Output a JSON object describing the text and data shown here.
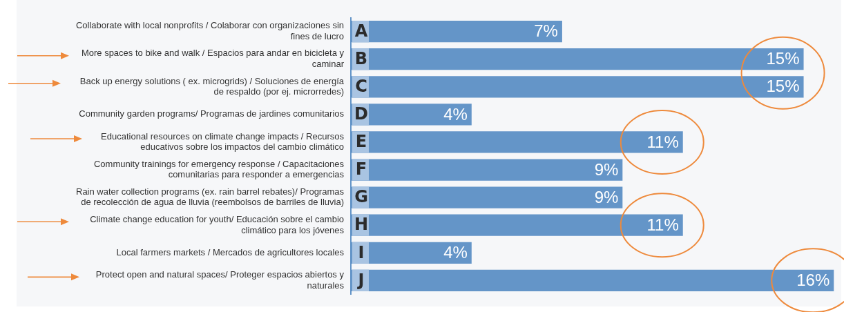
{
  "chart_data": {
    "type": "bar",
    "orientation": "horizontal",
    "categories": [
      "Collaborate with local nonprofits / Colaborar con organizaciones sin fines de lucro",
      "More spaces to bike and walk / Espacios para andar en bicicleta y caminar",
      "Back up energy solutions ( ex. microgrids) / Soluciones de energía de respaldo (por ej. microrredes)",
      "Community garden programs/ Programas de jardines comunitarios",
      "Educational resources on climate change impacts / Recursos educativos sobre los impactos del cambio climático",
      "Community trainings for emergency response / Capacitaciones comunitarias para responder a emergencias",
      "Rain water collection programs (ex. rain barrel rebates)/ Programas de recolección de agua de lluvia (reembolsos de barriles de lluvia)",
      "Climate change education for youth/ Educación sobre el cambio climático para los jóvenes",
      "Local farmers markets / Mercados de agricultores locales",
      "Protect open and natural spaces/ Proteger espacios abiertos y naturales"
    ],
    "values": [
      7,
      15,
      15,
      4,
      11,
      9,
      9,
      11,
      4,
      16
    ],
    "color": "#6495c8",
    "value_labels": [
      "7%",
      "15%",
      "15%",
      "4%",
      "11%",
      "9%",
      "9%",
      "11%",
      "4%",
      "16%"
    ],
    "annotations": [
      {
        "text": "A",
        "y": "Collaborate with local nonprofits / Colaborar con organizaciones sin fines de lucro"
      },
      {
        "text": "B",
        "y": "More spaces to bike and walk / Espacios para andar en bicicleta y caminar"
      },
      {
        "text": "C",
        "y": "Back up energy solutions ( ex. microgrids) / Soluciones de energía de respaldo (por ej. microrredes)"
      },
      {
        "text": "D",
        "y": "Community garden programs/ Programas de jardines comunitarios"
      },
      {
        "text": "E",
        "y": "Educational resources on climate change impacts / Recursos educativos sobre los impactos del cambio climático"
      },
      {
        "text": "F",
        "y": "Community trainings for emergency response / Capacitaciones comunitarias para responder a emergencias"
      },
      {
        "text": "G",
        "y": "Rain water collection programs (ex. rain barrel rebates)/ Programas de recolección de agua de lluvia (reembolsos de barriles de lluvia)"
      },
      {
        "text": "H",
        "y": "Climate change education for youth/ Educación sobre el cambio climático para los jóvenes"
      },
      {
        "text": "I",
        "y": "Local farmers markets / Mercados de agricultores locales"
      },
      {
        "text": "J",
        "y": "Protect open and natural spaces/ Proteger espacios abiertos y naturales"
      }
    ],
    "xlim": [
      0,
      16.2
    ],
    "tick_labels": "y",
    "grid": false,
    "legend": false
  }
}
